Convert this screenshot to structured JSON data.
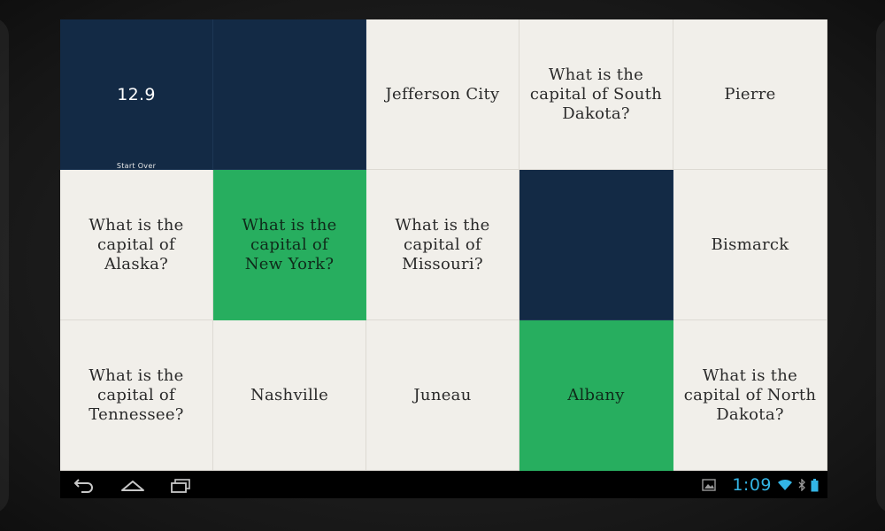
{
  "timer": {
    "value": "12.9",
    "start_over_label": "Start Over"
  },
  "tiles": [
    {
      "text": "",
      "state": "dark"
    },
    {
      "text": "",
      "state": "dark"
    },
    {
      "text": "Jefferson City",
      "state": "light"
    },
    {
      "text": "What is the capital of South Dakota?",
      "state": "light"
    },
    {
      "text": "Pierre",
      "state": "light"
    },
    {
      "text": "What is the capital of Alaska?",
      "state": "light"
    },
    {
      "text": "What is the capital of New York?",
      "state": "green"
    },
    {
      "text": "What is the capital of Missouri?",
      "state": "light"
    },
    {
      "text": "",
      "state": "dark"
    },
    {
      "text": "Bismarck",
      "state": "light"
    },
    {
      "text": "What is the capital of Tennessee?",
      "state": "light"
    },
    {
      "text": "Nashville",
      "state": "light"
    },
    {
      "text": "Juneau",
      "state": "light"
    },
    {
      "text": "Albany",
      "state": "green"
    },
    {
      "text": "What is the capital of North Dakota?",
      "state": "light"
    }
  ],
  "navbar": {
    "back_icon": "back-icon",
    "home_icon": "home-icon",
    "recents_icon": "recent-apps-icon"
  },
  "status_bar": {
    "time": "1:09",
    "icons": [
      "gallery-notification-icon",
      "wifi-icon",
      "bluetooth-icon",
      "battery-icon"
    ]
  },
  "colors": {
    "dark_tile": "#132a45",
    "green_tile": "#27ae5f",
    "light_tile": "#f1efea",
    "clock": "#33b5e5"
  }
}
